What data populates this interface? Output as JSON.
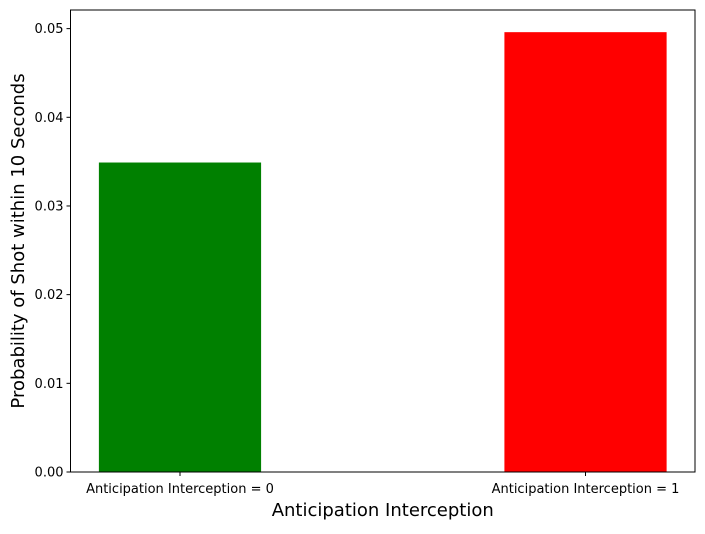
{
  "chart_data": {
    "type": "bar",
    "title": "",
    "xlabel": "Anticipation Interception",
    "ylabel": "Probability of Shot within 10 Seconds",
    "categories": [
      "Anticipation Interception = 0",
      "Anticipation Interception = 1"
    ],
    "values": [
      0.0349,
      0.0496
    ],
    "colors": [
      "#008000",
      "#ff0000"
    ],
    "ylim": [
      0,
      0.0521
    ],
    "yticks": [
      0.0,
      0.01,
      0.02,
      0.03,
      0.04,
      0.05
    ],
    "ytick_labels": [
      "0.00",
      "0.01",
      "0.02",
      "0.03",
      "0.04",
      "0.05"
    ],
    "grid": false,
    "legend": "none"
  }
}
